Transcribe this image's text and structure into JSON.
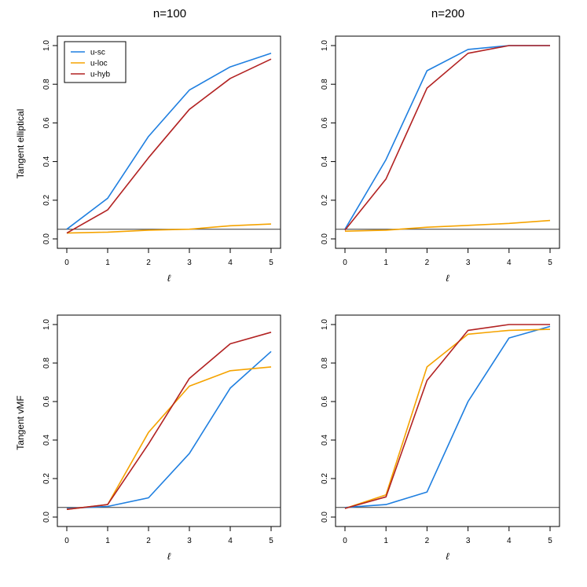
{
  "column_titles": [
    "n=100",
    "n=200"
  ],
  "row_labels": [
    "Tangent elliptical",
    "Tangent vMF"
  ],
  "colors": {
    "u-sc": "#1f7fe0",
    "u-loc": "#f5a300",
    "u-hyb": "#b22222",
    "reference": "#333333"
  },
  "chart_data": [
    {
      "type": "line",
      "title": "n=100",
      "ylabel": "Tangent elliptical",
      "xlabel": "ℓ",
      "x": [
        0,
        1,
        2,
        3,
        4,
        5
      ],
      "xticks": [
        "0",
        "1",
        "2",
        "3",
        "4",
        "5"
      ],
      "yticks": [
        "0.0",
        "0.2",
        "0.4",
        "0.6",
        "0.8",
        "1.0"
      ],
      "xlim": [
        0,
        5
      ],
      "ylim": [
        0,
        1
      ],
      "reference_line": 0.05,
      "legend": [
        "u-sc",
        "u-loc",
        "u-hyb"
      ],
      "legend_position": "top-left",
      "series": [
        {
          "name": "u-sc",
          "values": [
            0.05,
            0.21,
            0.53,
            0.77,
            0.89,
            0.96
          ]
        },
        {
          "name": "u-loc",
          "values": [
            0.03,
            0.035,
            0.045,
            0.05,
            0.068,
            0.077
          ]
        },
        {
          "name": "u-hyb",
          "values": [
            0.03,
            0.15,
            0.42,
            0.67,
            0.83,
            0.93
          ]
        }
      ]
    },
    {
      "type": "line",
      "title": "n=200",
      "ylabel": "",
      "xlabel": "ℓ",
      "x": [
        0,
        1,
        2,
        3,
        4,
        5
      ],
      "xticks": [
        "0",
        "1",
        "2",
        "3",
        "4",
        "5"
      ],
      "yticks": [
        "0.0",
        "0.2",
        "0.4",
        "0.6",
        "0.8",
        "1.0"
      ],
      "xlim": [
        0,
        5
      ],
      "ylim": [
        0,
        1
      ],
      "reference_line": 0.05,
      "series": [
        {
          "name": "u-sc",
          "values": [
            0.05,
            0.41,
            0.87,
            0.98,
            1.0,
            1.0
          ]
        },
        {
          "name": "u-loc",
          "values": [
            0.04,
            0.045,
            0.06,
            0.07,
            0.08,
            0.095
          ]
        },
        {
          "name": "u-hyb",
          "values": [
            0.045,
            0.31,
            0.78,
            0.96,
            1.0,
            1.0
          ]
        }
      ]
    },
    {
      "type": "line",
      "title": "",
      "ylabel": "Tangent vMF",
      "xlabel": "ℓ",
      "x": [
        0,
        1,
        2,
        3,
        4,
        5
      ],
      "xticks": [
        "0",
        "1",
        "2",
        "3",
        "4",
        "5"
      ],
      "yticks": [
        "0.0",
        "0.2",
        "0.4",
        "0.6",
        "0.8",
        "1.0"
      ],
      "xlim": [
        0,
        5
      ],
      "ylim": [
        0,
        1
      ],
      "reference_line": 0.05,
      "series": [
        {
          "name": "u-sc",
          "values": [
            0.045,
            0.055,
            0.1,
            0.33,
            0.67,
            0.86
          ]
        },
        {
          "name": "u-loc",
          "values": [
            0.04,
            0.065,
            0.44,
            0.68,
            0.76,
            0.78
          ]
        },
        {
          "name": "u-hyb",
          "values": [
            0.04,
            0.065,
            0.38,
            0.72,
            0.9,
            0.96
          ]
        }
      ]
    },
    {
      "type": "line",
      "title": "",
      "ylabel": "",
      "xlabel": "ℓ",
      "x": [
        0,
        1,
        2,
        3,
        4,
        5
      ],
      "xticks": [
        "0",
        "1",
        "2",
        "3",
        "4",
        "5"
      ],
      "yticks": [
        "0.0",
        "0.2",
        "0.4",
        "0.6",
        "0.8",
        "1.0"
      ],
      "xlim": [
        0,
        5
      ],
      "ylim": [
        0,
        1
      ],
      "reference_line": 0.05,
      "series": [
        {
          "name": "u-sc",
          "values": [
            0.05,
            0.065,
            0.13,
            0.6,
            0.93,
            0.99
          ]
        },
        {
          "name": "u-loc",
          "values": [
            0.045,
            0.115,
            0.78,
            0.95,
            0.97,
            0.975
          ]
        },
        {
          "name": "u-hyb",
          "values": [
            0.045,
            0.105,
            0.71,
            0.97,
            1.0,
            1.0
          ]
        }
      ]
    }
  ]
}
